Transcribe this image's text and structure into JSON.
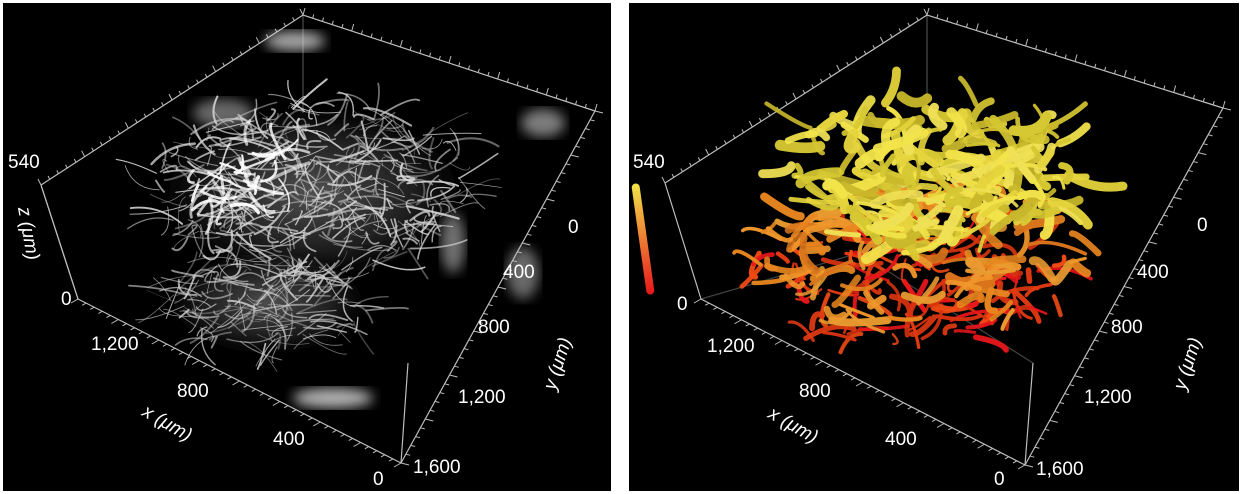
{
  "left_panel": {
    "z_ticks": [
      "540",
      "0"
    ],
    "z_label": "z (μm)",
    "x_ticks": [
      "1,200",
      "800",
      "400",
      "0"
    ],
    "x_label": "x (μm)",
    "y_ticks": [
      "0",
      "400",
      "800",
      "1,200",
      "1,600"
    ],
    "y_label": "y (μm)"
  },
  "right_panel": {
    "colorbar": {
      "max": "540",
      "min": "0",
      "top_color": "#f2e34a",
      "bottom_color": "#e8161b"
    },
    "x_ticks": [
      "1,200",
      "800",
      "400",
      "0"
    ],
    "x_label": "x (μm)",
    "y_ticks": [
      "0",
      "400",
      "800",
      "1,200",
      "1,600"
    ],
    "y_label": "y (μm)"
  }
}
